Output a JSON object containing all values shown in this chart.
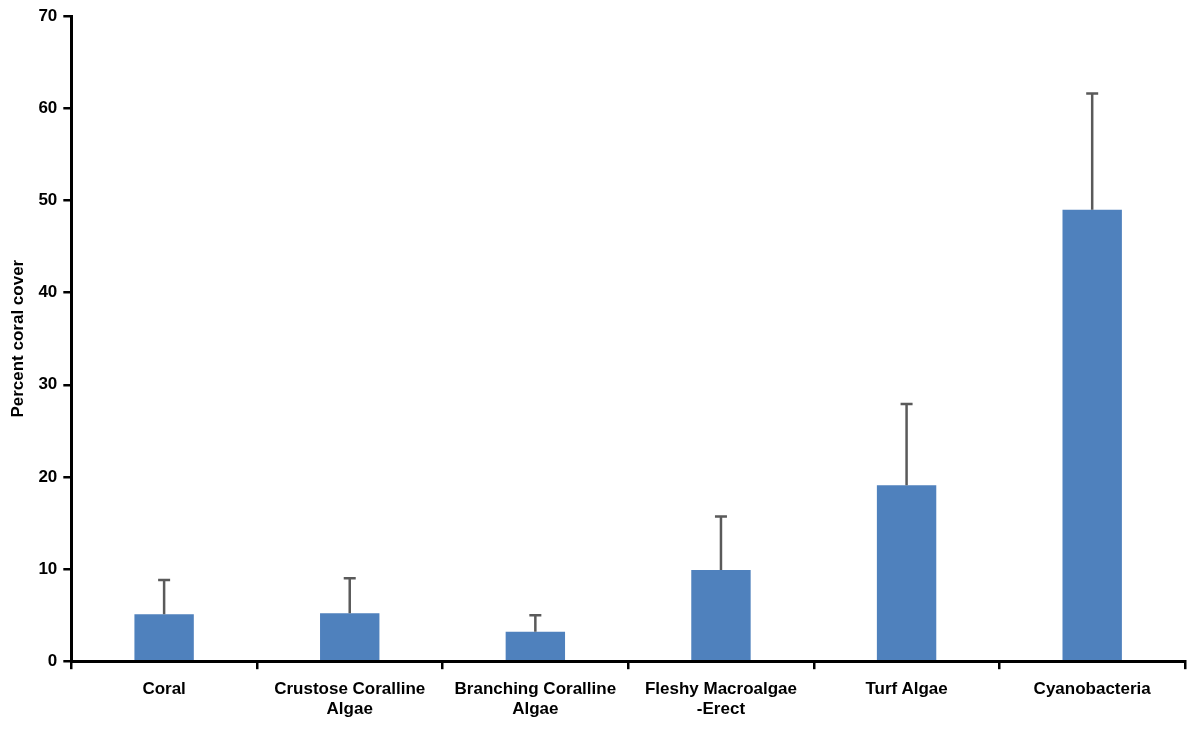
{
  "chart_data": {
    "type": "bar",
    "ylabel": "Percent coral cover",
    "categories": [
      "Coral",
      "Crustose Coralline Algae",
      "Branching Coralline Algae",
      "Fleshy Macroalgae -Erect",
      "Turf Algae",
      "Cyanobacteria"
    ],
    "values": [
      5.1,
      5.2,
      3.2,
      9.9,
      19.1,
      49.0
    ],
    "errors": [
      [
        5.1,
        8.8
      ],
      [
        5.2,
        9.0
      ],
      [
        3.2,
        5.0
      ],
      [
        9.9,
        15.7
      ],
      [
        19.1,
        27.9
      ],
      [
        49.0,
        61.6
      ]
    ],
    "color": "#4f81bd",
    "ylim": [
      0,
      70
    ],
    "yticks": [
      0,
      10,
      20,
      30,
      40,
      50,
      60,
      70
    ],
    "grid": false,
    "legend": false
  }
}
